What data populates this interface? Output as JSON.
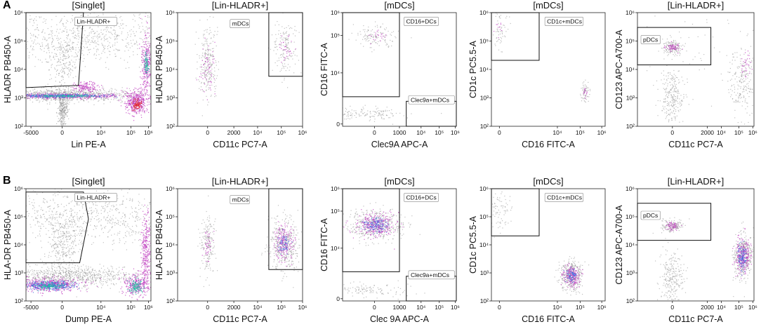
{
  "rows": [
    {
      "label": "A",
      "panels": [
        {
          "title": "[Singlet]",
          "xlabel": "Lin PE-A",
          "ylabel": "HLADR PB450-A",
          "xticks": [
            "-5000",
            "0",
            "10⁴",
            "10⁵",
            "10⁶"
          ],
          "yticks": [
            "10⁶",
            "10⁵",
            "10⁴",
            "10³",
            "10²"
          ],
          "gates": [
            {
              "name": "Lin-HLADR+"
            }
          ]
        },
        {
          "title": "[Lin-HLADR+]",
          "xlabel": "CD11c PC7-A",
          "ylabel": "HLADR PB450-A",
          "xticks": [
            "0",
            "2000",
            "10⁴",
            "10⁵",
            "10⁶"
          ],
          "yticks": [
            "10⁶",
            "10⁵",
            "10⁴",
            "10³",
            "10²"
          ],
          "gates": [
            {
              "name": "mDCs"
            }
          ]
        },
        {
          "title": "[mDCs]",
          "xlabel": "Clec9A APC-A",
          "ylabel": "CD16 FITC-A",
          "xticks": [
            "0",
            "1000",
            "10⁴",
            "10⁵",
            "10⁶"
          ],
          "yticks": [
            "10⁶",
            "10⁵",
            "10⁴",
            "0"
          ],
          "gates": [
            {
              "name": "CD16+DCs"
            },
            {
              "name": "Clec9a+mDCs"
            }
          ]
        },
        {
          "title": "[mDCs]",
          "xlabel": "CD16 FITC-A",
          "ylabel": "CD1c PC5.5-A",
          "xticks": [
            "0",
            "10⁴",
            "10⁵",
            "10⁶"
          ],
          "yticks": [
            "10⁶",
            "10⁵",
            "10⁴",
            "10³",
            "10²"
          ],
          "gates": [
            {
              "name": "CD1c+mDCs"
            }
          ]
        },
        {
          "title": "[Lin-HLADR+]",
          "xlabel": "CD11c PC7-A",
          "ylabel": "CD123 APC-A700-A",
          "xticks": [
            "0",
            "2000",
            "10⁴",
            "10⁵",
            "10⁶"
          ],
          "yticks": [
            "10⁶",
            "10⁵",
            "10⁴",
            "10³",
            "10²"
          ],
          "gates": [
            {
              "name": "pDCs"
            }
          ]
        }
      ]
    },
    {
      "label": "B",
      "panels": [
        {
          "title": "[Singlet]",
          "xlabel": "Dump PE-A",
          "ylabel": "HLA-DR PB450-A",
          "xticks": [
            "-5000",
            "0",
            "10⁴",
            "10⁵",
            "10⁶"
          ],
          "yticks": [
            "10⁶",
            "10⁵",
            "10⁴",
            "10³",
            "10²"
          ],
          "gates": [
            {
              "name": "Lin-HLADR+"
            }
          ]
        },
        {
          "title": "[Lin-HLADR+]",
          "xlabel": "CD11c PC7-A",
          "ylabel": "HLA-DR PB450-A",
          "xticks": [
            "0",
            "2000",
            "10⁴",
            "10⁵",
            "10⁶"
          ],
          "yticks": [
            "10⁶",
            "10⁵",
            "10⁴",
            "10³",
            "10²"
          ],
          "gates": [
            {
              "name": "mDCs"
            }
          ]
        },
        {
          "title": "[mDCs]",
          "xlabel": "Clec 9A APC-A",
          "ylabel": "CD16 FITC-A",
          "xticks": [
            "0",
            "1000",
            "10⁴",
            "10⁵",
            "10⁶"
          ],
          "yticks": [
            "10⁶",
            "10⁵",
            "10⁴",
            "0"
          ],
          "gates": [
            {
              "name": "CD16+DCs"
            },
            {
              "name": "Clec9a+mDCs"
            }
          ]
        },
        {
          "title": "[mDCs]",
          "xlabel": "CD16 FITC-A",
          "ylabel": "CD1c PC5.5-A",
          "xticks": [
            "0",
            "10⁴",
            "10⁵",
            "10⁶"
          ],
          "yticks": [
            "10⁶",
            "10⁵",
            "10⁴",
            "10³",
            "10²"
          ],
          "gates": [
            {
              "name": "CD1c+mDCs"
            }
          ]
        },
        {
          "title": "[Lin-HLADR+]",
          "xlabel": "CD11c PC7-A",
          "ylabel": "CD123 APC-A700-A",
          "xticks": [
            "0",
            "2000",
            "10⁴",
            "10⁵",
            "10⁶"
          ],
          "yticks": [
            "10⁶",
            "10⁵",
            "10⁴",
            "10³",
            "10²"
          ],
          "gates": [
            {
              "name": "pDCs"
            }
          ]
        }
      ]
    }
  ],
  "chart_data": {
    "type": "scatter",
    "colors": {
      "low_density": "#8c8c8c",
      "mid_density": "#c040c0",
      "high_density": "#4a6be0",
      "peak_density": "#20c0a0",
      "max_density": "#e02020"
    }
  }
}
